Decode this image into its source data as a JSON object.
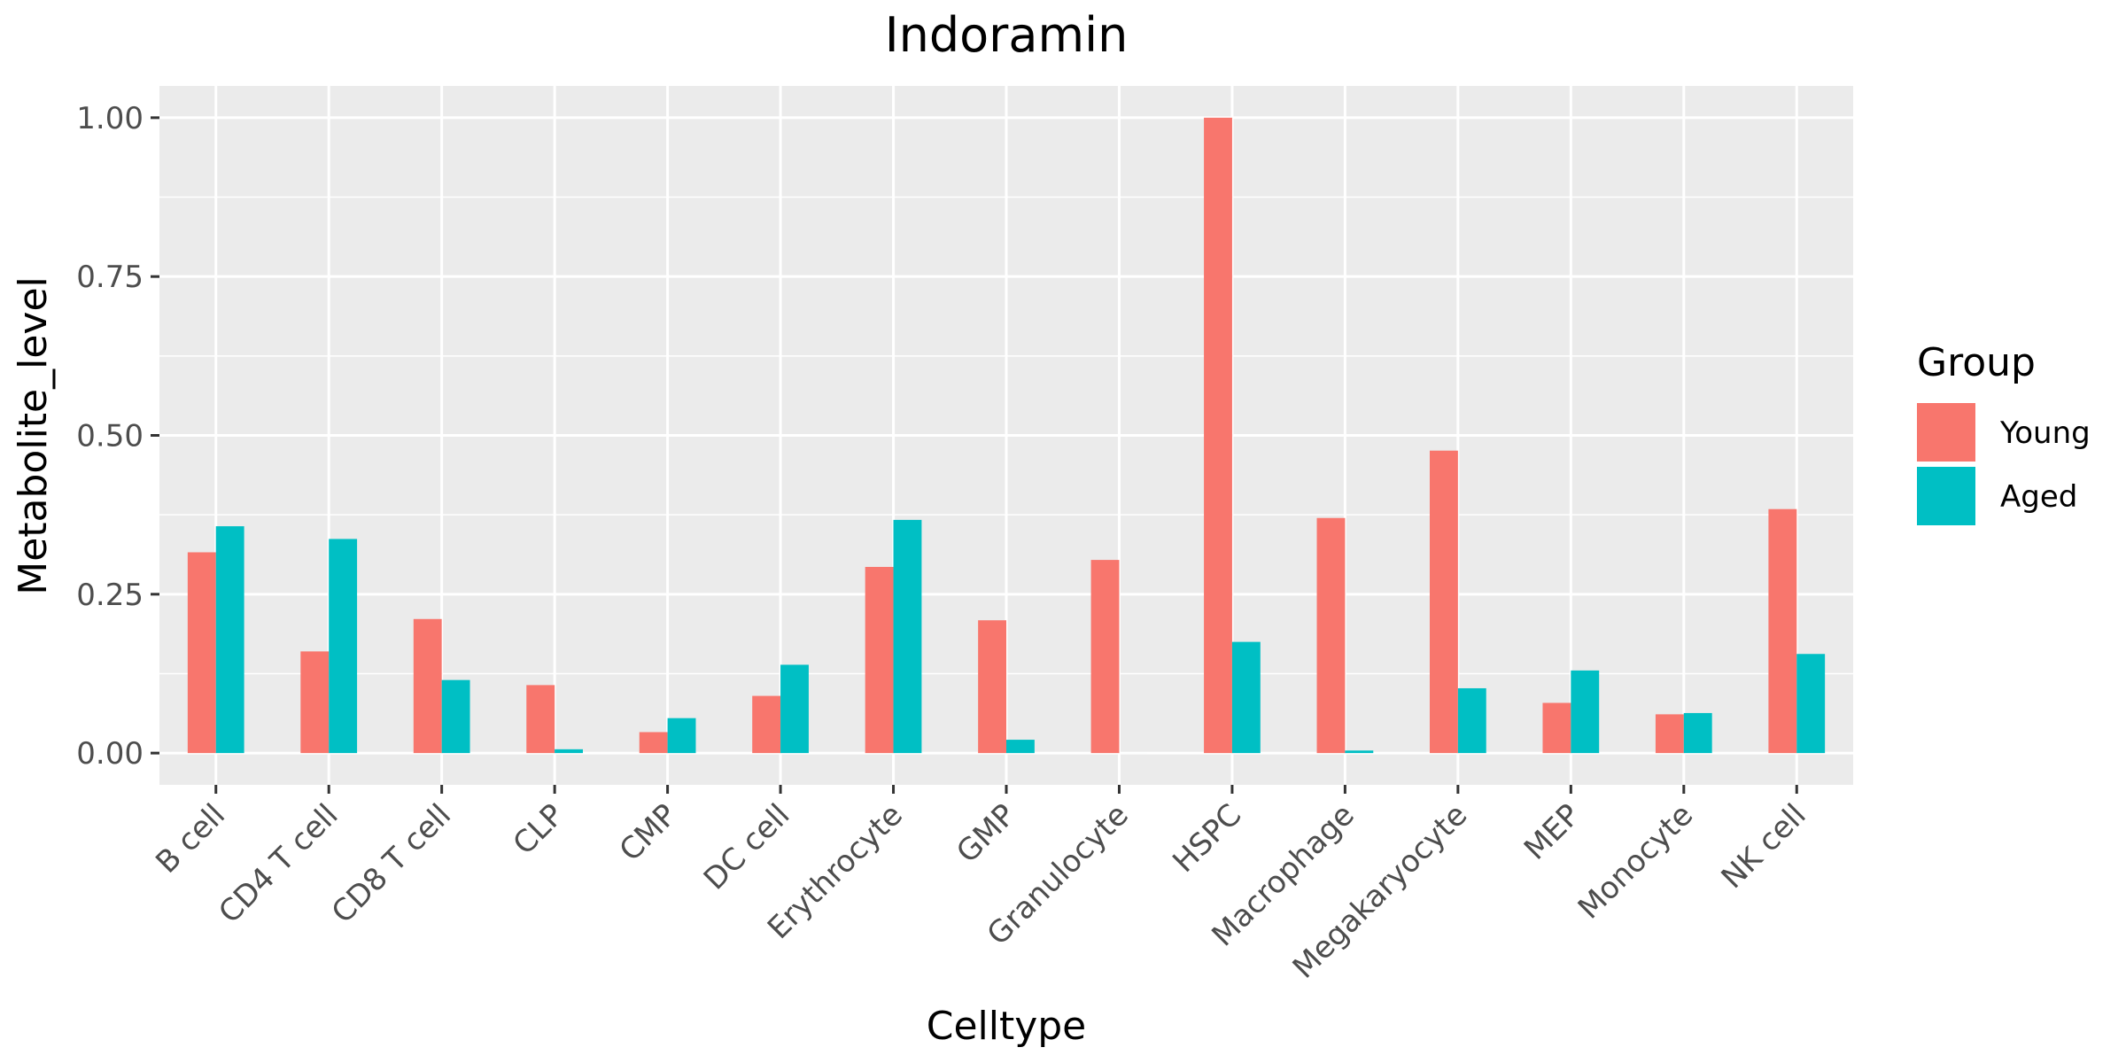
{
  "chart_data": {
    "type": "bar",
    "title": "Indoramin",
    "xlabel": "Celltype",
    "ylabel": "Metabolite_level",
    "ylim": [
      -0.05,
      1.05
    ],
    "yticks": [
      0.0,
      0.25,
      0.5,
      0.75,
      1.0
    ],
    "ytick_labels": [
      "0.00",
      "0.25",
      "0.50",
      "0.75",
      "1.00"
    ],
    "categories": [
      "B cell",
      "CD4 T cell",
      "CD8 T cell",
      "CLP",
      "CMP",
      "DC cell",
      "Erythrocyte",
      "GMP",
      "Granulocyte",
      "HSPC",
      "Macrophage",
      "Megakaryocyte",
      "MEP",
      "Monocyte",
      "NK cell"
    ],
    "series": [
      {
        "name": "Young",
        "color": "#F8766D",
        "values": [
          0.316,
          0.16,
          0.211,
          0.107,
          0.033,
          0.09,
          0.293,
          0.209,
          0.304,
          1.0,
          0.37,
          0.476,
          0.079,
          0.061,
          0.384
        ]
      },
      {
        "name": "Aged",
        "color": "#00BFC4",
        "values": [
          0.357,
          0.337,
          0.115,
          0.006,
          0.055,
          0.139,
          0.367,
          0.021,
          0.0,
          0.175,
          0.004,
          0.102,
          0.13,
          0.063,
          0.156
        ]
      }
    ],
    "legend_title": "Group",
    "legend_position": "right",
    "grid": true,
    "panel_background": "#EBEBEB"
  }
}
